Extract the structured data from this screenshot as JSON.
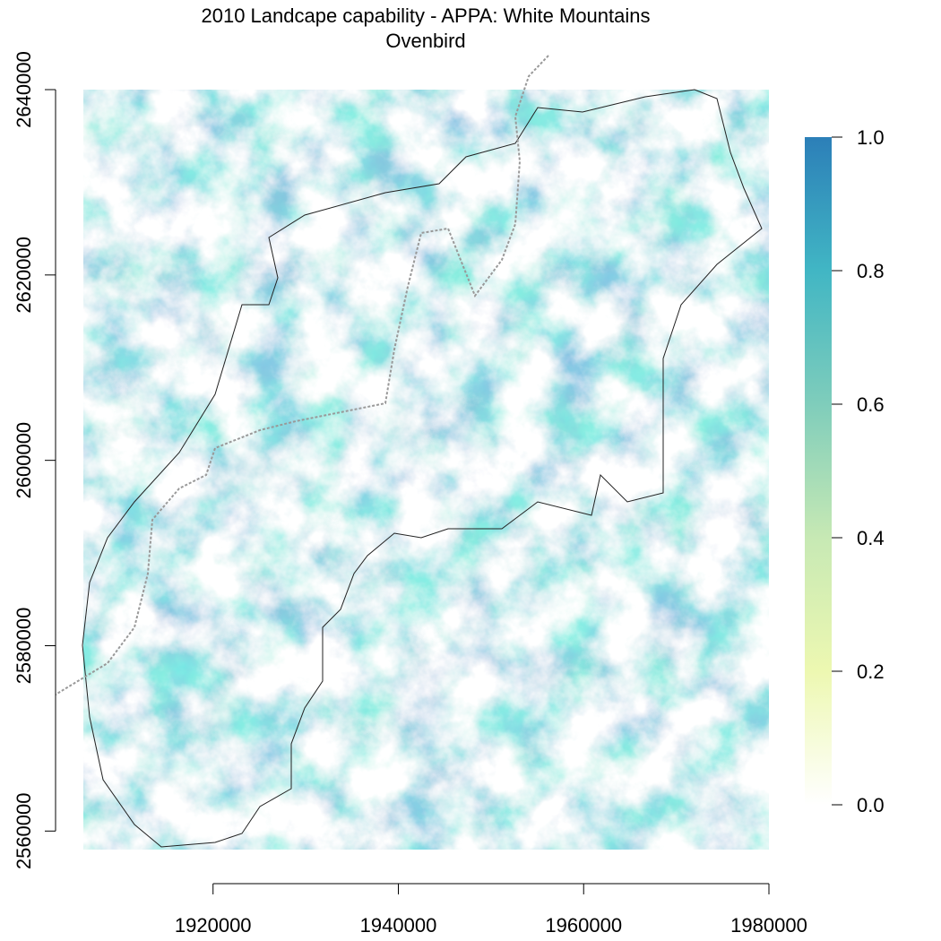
{
  "title": "2010 Landcape capability - APPA: White Mountains",
  "subtitle": "Ovenbird",
  "chart_data": {
    "type": "heatmap",
    "title": "2010 Landcape capability - APPA: White Mountains",
    "subtitle": "Ovenbird",
    "xlim": [
      1906000,
      1980000
    ],
    "ylim": [
      2558000,
      2640000
    ],
    "x_ticks": [
      1920000,
      1940000,
      1960000,
      1980000
    ],
    "y_ticks": [
      2560000,
      2580000,
      2600000,
      2620000,
      2640000
    ],
    "x_tick_labels": [
      "1920000",
      "1940000",
      "1960000",
      "1980000"
    ],
    "y_tick_labels": [
      "2560000",
      "2580000",
      "2600000",
      "2620000",
      "2640000"
    ],
    "value_range": [
      0,
      1
    ],
    "legend": {
      "placement": "right",
      "ticks": [
        0.0,
        0.2,
        0.4,
        0.6,
        0.8,
        1.0
      ],
      "tick_labels": [
        "0.0",
        "0.2",
        "0.4",
        "0.6",
        "0.8",
        "1.0"
      ],
      "colors": [
        "#ffffff",
        "#edf8b1",
        "#c7e9b4",
        "#7fcdbb",
        "#41b6c4",
        "#2c7fb8"
      ]
    },
    "overlays": [
      "study-area-boundary",
      "trail-line"
    ]
  }
}
